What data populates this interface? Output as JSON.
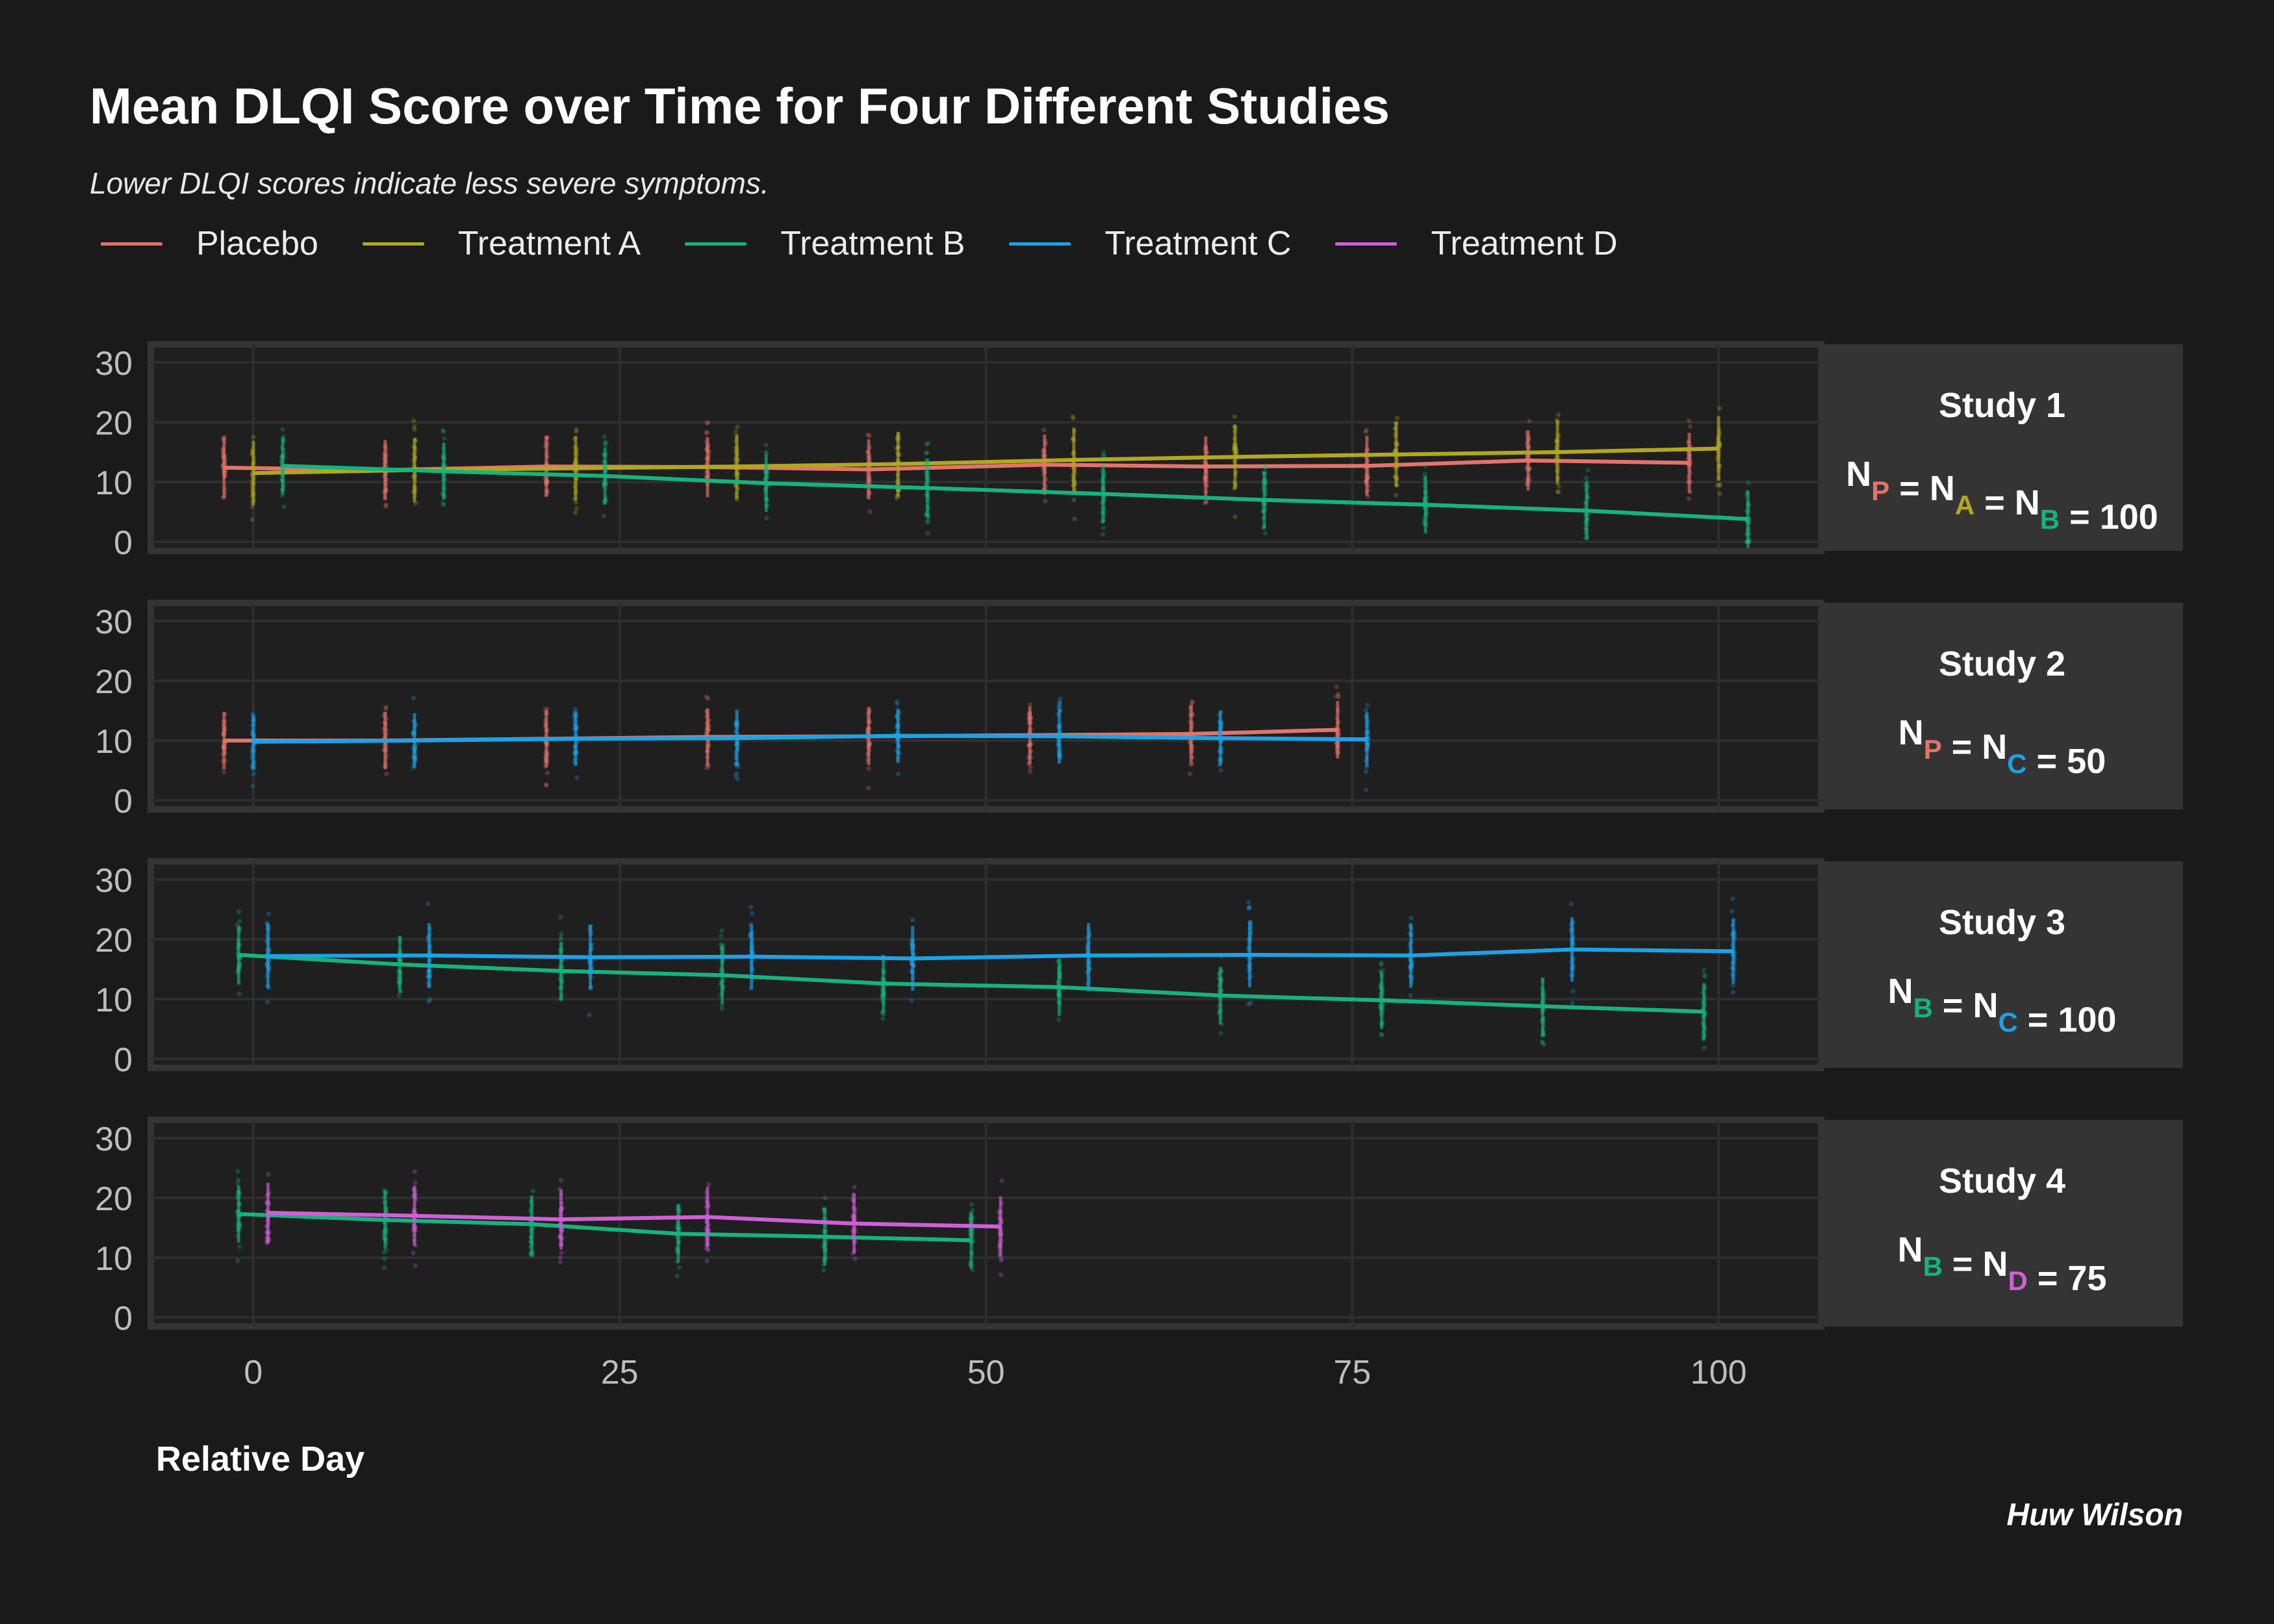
{
  "title": "Mean DLQI Score over Time for Four Different Studies",
  "subtitle": "Lower DLQI scores indicate less severe symptoms.",
  "xlabel": "Relative Day",
  "caption": "Huw Wilson",
  "colors": {
    "Placebo": "#e4736a",
    "Treatment A": "#b1a81d",
    "Treatment B": "#14b47d",
    "Treatment C": "#1aa3e8",
    "Treatment D": "#d05fd8",
    "background": "#1a1a1b",
    "panel": "#1f1f20",
    "strip": "#343435",
    "grid": "#2e2e2f",
    "axis_text": "#bdbdbd"
  },
  "legend": [
    {
      "name": "Placebo",
      "key": "P"
    },
    {
      "name": "Treatment A",
      "key": "A"
    },
    {
      "name": "Treatment B",
      "key": "B"
    },
    {
      "name": "Treatment C",
      "key": "C"
    },
    {
      "name": "Treatment D",
      "key": "D"
    }
  ],
  "chart_data": {
    "type": "line",
    "xlim": [
      -7,
      107
    ],
    "ylim": [
      0,
      30
    ],
    "x_ticks": [
      0,
      25,
      50,
      75,
      100
    ],
    "y_ticks": [
      0,
      10,
      20,
      30
    ],
    "grid": true,
    "legend_position": "top-left",
    "panels": [
      {
        "strip_title": "Study 1",
        "strip_n": [
          {
            "text": "N"
          },
          {
            "sub": "P",
            "color_key": "Placebo"
          },
          {
            "text": " = N"
          },
          {
            "sub": "A",
            "color_key": "Treatment A"
          },
          {
            "text": " = N"
          },
          {
            "sub": "B",
            "color_key": "Treatment B"
          },
          {
            "text": " = 100"
          }
        ],
        "series": [
          {
            "name": "Placebo",
            "x": [
              -2,
              9,
              20,
              31,
              42,
              54,
              65,
              76,
              87,
              98
            ],
            "y": [
              12.4,
              12.0,
              12.6,
              12.5,
              12.1,
              12.9,
              12.6,
              12.7,
              13.6,
              13.2
            ],
            "sd": 4.2
          },
          {
            "name": "Treatment A",
            "x": [
              0,
              11,
              22,
              33,
              44,
              56,
              67,
              78,
              89,
              100
            ],
            "y": [
              11.5,
              12.0,
              12.3,
              12.6,
              13.0,
              13.7,
              14.2,
              14.6,
              15.0,
              15.6
            ],
            "sd": 4.5
          },
          {
            "name": "Treatment B",
            "x": [
              2,
              13,
              24,
              35,
              46,
              58,
              69,
              80,
              91,
              102
            ],
            "y": [
              12.7,
              11.8,
              11.0,
              9.8,
              9.0,
              8.0,
              7.0,
              6.2,
              5.2,
              3.8
            ],
            "sd": 4.0
          }
        ]
      },
      {
        "strip_title": "Study 2",
        "strip_n": [
          {
            "text": "N"
          },
          {
            "sub": "P",
            "color_key": "Placebo"
          },
          {
            "text": " = N"
          },
          {
            "sub": "C",
            "color_key": "Treatment C"
          },
          {
            "text": " = 50"
          }
        ],
        "series": [
          {
            "name": "Placebo",
            "x": [
              -2,
              9,
              20,
              31,
              42,
              53,
              64,
              74
            ],
            "y": [
              10.0,
              10.0,
              10.3,
              10.6,
              10.7,
              10.9,
              11.1,
              11.8
            ],
            "sd": 4.0
          },
          {
            "name": "Treatment C",
            "x": [
              0,
              11,
              22,
              33,
              44,
              55,
              66,
              76
            ],
            "y": [
              9.8,
              10.0,
              10.3,
              10.4,
              10.8,
              10.7,
              10.4,
              10.2
            ],
            "sd": 3.8
          }
        ]
      },
      {
        "strip_title": "Study 3",
        "strip_n": [
          {
            "text": "N"
          },
          {
            "sub": "B",
            "color_key": "Treatment B"
          },
          {
            "text": " = N"
          },
          {
            "sub": "C",
            "color_key": "Treatment C"
          },
          {
            "text": " = 100"
          }
        ],
        "series": [
          {
            "name": "Treatment B",
            "x": [
              -1,
              10,
              21,
              32,
              43,
              55,
              66,
              77,
              88,
              99
            ],
            "y": [
              17.4,
              15.8,
              14.7,
              14.0,
              12.6,
              12.0,
              10.6,
              9.8,
              8.8,
              7.9
            ],
            "sd": 4.0
          },
          {
            "name": "Treatment C",
            "x": [
              1,
              12,
              23,
              34,
              45,
              57,
              68,
              79,
              90,
              101
            ],
            "y": [
              17.2,
              17.3,
              17.0,
              17.1,
              16.8,
              17.3,
              17.4,
              17.3,
              18.3,
              18.0
            ],
            "sd": 4.5
          }
        ]
      },
      {
        "strip_title": "Study 4",
        "strip_n": [
          {
            "text": "N"
          },
          {
            "sub": "B",
            "color_key": "Treatment B"
          },
          {
            "text": " = N"
          },
          {
            "sub": "D",
            "color_key": "Treatment D"
          },
          {
            "text": " = 75"
          }
        ],
        "series": [
          {
            "name": "Treatment B",
            "x": [
              -1,
              9,
              19,
              29,
              39,
              49
            ],
            "y": [
              17.3,
              16.3,
              15.6,
              14.0,
              13.5,
              12.9
            ],
            "sd": 4.0
          },
          {
            "name": "Treatment D",
            "x": [
              1,
              11,
              21,
              31,
              41,
              51
            ],
            "y": [
              17.5,
              17.0,
              16.4,
              16.8,
              15.7,
              15.2
            ],
            "sd": 4.2
          }
        ]
      }
    ]
  }
}
